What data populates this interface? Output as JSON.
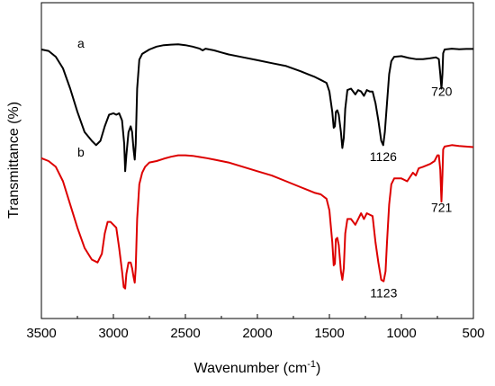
{
  "chart_data": {
    "type": "line",
    "xlabel": "Wavenumber (cm",
    "xlabel_sup": "-1",
    "xlabel_close": ")",
    "ylabel": "Transmittance (%)",
    "xlim": [
      3500,
      500
    ],
    "x_reversed": true,
    "ylim": [
      0,
      1
    ],
    "y_ticks_shown": false,
    "x_ticks": [
      "3500",
      "3000",
      "2500",
      "2000",
      "1500",
      "1000",
      "500"
    ],
    "grid": false,
    "legend": "none",
    "series": [
      {
        "label": "a",
        "color": "#000000",
        "points": [
          [
            3500,
            0.885
          ],
          [
            3450,
            0.88
          ],
          [
            3400,
            0.86
          ],
          [
            3350,
            0.82
          ],
          [
            3300,
            0.75
          ],
          [
            3250,
            0.67
          ],
          [
            3200,
            0.6
          ],
          [
            3150,
            0.57
          ],
          [
            3120,
            0.555
          ],
          [
            3090,
            0.57
          ],
          [
            3060,
            0.62
          ],
          [
            3030,
            0.66
          ],
          [
            3000,
            0.665
          ],
          [
            2980,
            0.66
          ],
          [
            2960,
            0.665
          ],
          [
            2940,
            0.64
          ],
          [
            2925,
            0.56
          ],
          [
            2918,
            0.465
          ],
          [
            2910,
            0.52
          ],
          [
            2895,
            0.6
          ],
          [
            2880,
            0.62
          ],
          [
            2870,
            0.6
          ],
          [
            2860,
            0.54
          ],
          [
            2852,
            0.505
          ],
          [
            2845,
            0.56
          ],
          [
            2835,
            0.75
          ],
          [
            2820,
            0.85
          ],
          [
            2800,
            0.87
          ],
          [
            2750,
            0.885
          ],
          [
            2700,
            0.895
          ],
          [
            2650,
            0.9
          ],
          [
            2600,
            0.902
          ],
          [
            2550,
            0.903
          ],
          [
            2500,
            0.9
          ],
          [
            2450,
            0.895
          ],
          [
            2400,
            0.888
          ],
          [
            2380,
            0.882
          ],
          [
            2360,
            0.888
          ],
          [
            2300,
            0.882
          ],
          [
            2250,
            0.875
          ],
          [
            2200,
            0.868
          ],
          [
            2100,
            0.858
          ],
          [
            2000,
            0.848
          ],
          [
            1900,
            0.838
          ],
          [
            1800,
            0.828
          ],
          [
            1700,
            0.81
          ],
          [
            1650,
            0.8
          ],
          [
            1600,
            0.79
          ],
          [
            1560,
            0.78
          ],
          [
            1520,
            0.77
          ],
          [
            1500,
            0.74
          ],
          [
            1480,
            0.67
          ],
          [
            1470,
            0.615
          ],
          [
            1462,
            0.62
          ],
          [
            1455,
            0.67
          ],
          [
            1445,
            0.675
          ],
          [
            1435,
            0.66
          ],
          [
            1420,
            0.6
          ],
          [
            1410,
            0.545
          ],
          [
            1400,
            0.58
          ],
          [
            1390,
            0.68
          ],
          [
            1375,
            0.745
          ],
          [
            1350,
            0.75
          ],
          [
            1320,
            0.73
          ],
          [
            1300,
            0.745
          ],
          [
            1280,
            0.74
          ],
          [
            1260,
            0.725
          ],
          [
            1240,
            0.745
          ],
          [
            1220,
            0.74
          ],
          [
            1200,
            0.74
          ],
          [
            1180,
            0.7
          ],
          [
            1160,
            0.64
          ],
          [
            1140,
            0.57
          ],
          [
            1126,
            0.555
          ],
          [
            1115,
            0.6
          ],
          [
            1100,
            0.7
          ],
          [
            1085,
            0.8
          ],
          [
            1070,
            0.845
          ],
          [
            1050,
            0.86
          ],
          [
            1000,
            0.862
          ],
          [
            950,
            0.856
          ],
          [
            900,
            0.852
          ],
          [
            850,
            0.852
          ],
          [
            800,
            0.855
          ],
          [
            760,
            0.858
          ],
          [
            740,
            0.852
          ],
          [
            730,
            0.8
          ],
          [
            722,
            0.75
          ],
          [
            715,
            0.8
          ],
          [
            710,
            0.872
          ],
          [
            700,
            0.885
          ],
          [
            650,
            0.888
          ],
          [
            600,
            0.886
          ],
          [
            550,
            0.887
          ],
          [
            500,
            0.887
          ]
        ]
      },
      {
        "label": "b",
        "color": "#dd0000",
        "points": [
          [
            3500,
            0.51
          ],
          [
            3450,
            0.5
          ],
          [
            3400,
            0.48
          ],
          [
            3350,
            0.43
          ],
          [
            3300,
            0.35
          ],
          [
            3250,
            0.27
          ],
          [
            3200,
            0.2
          ],
          [
            3150,
            0.16
          ],
          [
            3110,
            0.15
          ],
          [
            3080,
            0.18
          ],
          [
            3060,
            0.25
          ],
          [
            3040,
            0.29
          ],
          [
            3020,
            0.29
          ],
          [
            3000,
            0.28
          ],
          [
            2980,
            0.27
          ],
          [
            2960,
            0.2
          ],
          [
            2940,
            0.12
          ],
          [
            2928,
            0.065
          ],
          [
            2918,
            0.06
          ],
          [
            2910,
            0.11
          ],
          [
            2895,
            0.15
          ],
          [
            2880,
            0.15
          ],
          [
            2870,
            0.13
          ],
          [
            2860,
            0.1
          ],
          [
            2852,
            0.08
          ],
          [
            2845,
            0.13
          ],
          [
            2835,
            0.3
          ],
          [
            2820,
            0.42
          ],
          [
            2800,
            0.46
          ],
          [
            2780,
            0.48
          ],
          [
            2750,
            0.495
          ],
          [
            2700,
            0.5
          ],
          [
            2650,
            0.508
          ],
          [
            2600,
            0.515
          ],
          [
            2550,
            0.52
          ],
          [
            2500,
            0.52
          ],
          [
            2450,
            0.518
          ],
          [
            2400,
            0.514
          ],
          [
            2350,
            0.51
          ],
          [
            2300,
            0.505
          ],
          [
            2250,
            0.5
          ],
          [
            2200,
            0.495
          ],
          [
            2100,
            0.48
          ],
          [
            2000,
            0.465
          ],
          [
            1900,
            0.45
          ],
          [
            1800,
            0.43
          ],
          [
            1700,
            0.41
          ],
          [
            1650,
            0.4
          ],
          [
            1600,
            0.39
          ],
          [
            1560,
            0.385
          ],
          [
            1520,
            0.37
          ],
          [
            1500,
            0.33
          ],
          [
            1480,
            0.22
          ],
          [
            1470,
            0.14
          ],
          [
            1462,
            0.145
          ],
          [
            1455,
            0.23
          ],
          [
            1445,
            0.235
          ],
          [
            1435,
            0.21
          ],
          [
            1420,
            0.12
          ],
          [
            1410,
            0.09
          ],
          [
            1400,
            0.13
          ],
          [
            1390,
            0.25
          ],
          [
            1375,
            0.3
          ],
          [
            1350,
            0.3
          ],
          [
            1320,
            0.28
          ],
          [
            1300,
            0.3
          ],
          [
            1280,
            0.32
          ],
          [
            1260,
            0.3
          ],
          [
            1240,
            0.32
          ],
          [
            1220,
            0.315
          ],
          [
            1200,
            0.31
          ],
          [
            1180,
            0.22
          ],
          [
            1160,
            0.15
          ],
          [
            1140,
            0.09
          ],
          [
            1123,
            0.085
          ],
          [
            1110,
            0.12
          ],
          [
            1100,
            0.22
          ],
          [
            1085,
            0.35
          ],
          [
            1070,
            0.42
          ],
          [
            1050,
            0.44
          ],
          [
            1000,
            0.44
          ],
          [
            980,
            0.435
          ],
          [
            960,
            0.43
          ],
          [
            940,
            0.445
          ],
          [
            920,
            0.46
          ],
          [
            900,
            0.45
          ],
          [
            880,
            0.475
          ],
          [
            850,
            0.48
          ],
          [
            800,
            0.49
          ],
          [
            770,
            0.5
          ],
          [
            750,
            0.52
          ],
          [
            740,
            0.52
          ],
          [
            730,
            0.47
          ],
          [
            722,
            0.36
          ],
          [
            715,
            0.45
          ],
          [
            710,
            0.54
          ],
          [
            700,
            0.55
          ],
          [
            650,
            0.555
          ],
          [
            600,
            0.552
          ],
          [
            550,
            0.55
          ],
          [
            500,
            0.548
          ]
        ]
      }
    ],
    "annotations": [
      {
        "text": "720",
        "x": 720,
        "y": 0.725
      },
      {
        "text": "1126",
        "x": 1126,
        "y": 0.5
      },
      {
        "text": "721",
        "x": 721,
        "y": 0.325
      },
      {
        "text": "1123",
        "x": 1123,
        "y": 0.03
      }
    ]
  }
}
